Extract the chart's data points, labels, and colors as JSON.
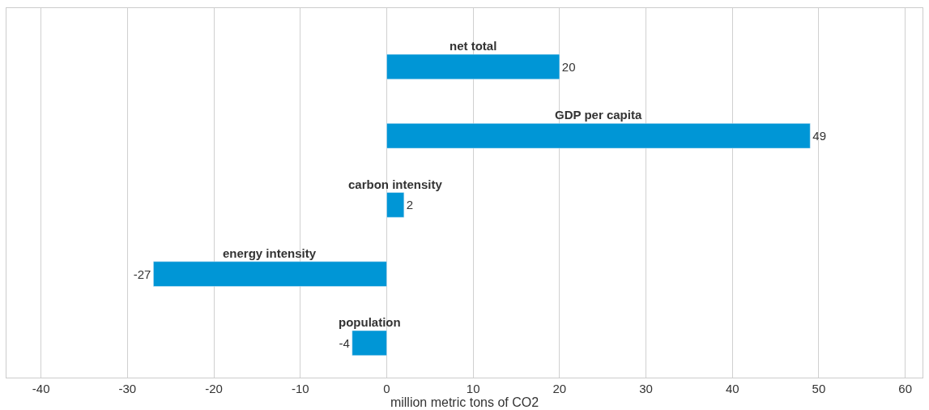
{
  "chart_data": {
    "type": "bar",
    "orientation": "horizontal",
    "categories": [
      "net total",
      "GDP per capita",
      "carbon intensity",
      "energy intensity",
      "population"
    ],
    "values": [
      20,
      49,
      2,
      -27,
      -4
    ],
    "color": "#0096d6",
    "data_labels": true,
    "xlabel": "million metric tons of CO2",
    "xlim": [
      -44,
      62
    ],
    "xticks": [
      -40,
      -30,
      -20,
      -10,
      0,
      10,
      20,
      30,
      40,
      50,
      60
    ],
    "grid": "x",
    "legend": false
  }
}
